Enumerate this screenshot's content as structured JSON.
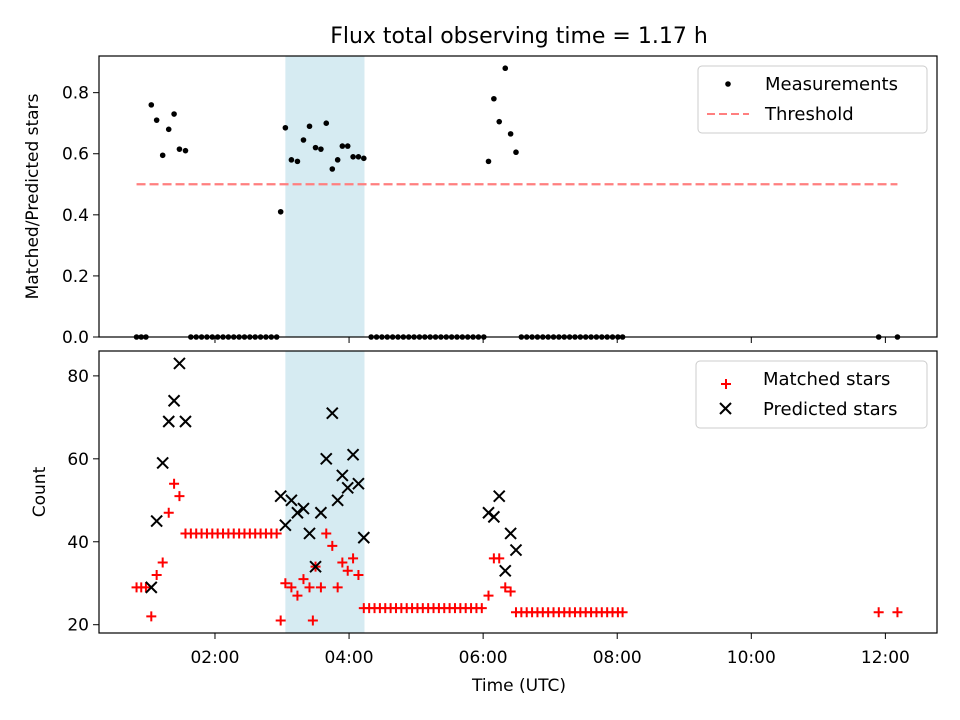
{
  "title": "Flux total observing time = 1.17 h",
  "chart_data": [
    {
      "type": "scatter",
      "ylabel": "Matched/Predicted stars",
      "xlim": [
        0.27,
        12.77
      ],
      "ylim": [
        0,
        0.92
      ],
      "yticks": [
        0.0,
        0.2,
        0.4,
        0.6,
        0.8
      ],
      "ytick_labels": [
        "0.0",
        "0.2",
        "0.4",
        "0.6",
        "0.8"
      ],
      "shaded_span": {
        "x0": 3.05,
        "x1": 4.23,
        "color": "#add8e6"
      },
      "legend": {
        "position": "upper right",
        "measurements_label": "Measurements",
        "threshold_label": "Threshold"
      },
      "series": [
        {
          "name": "Measurements",
          "color": "#000000",
          "marker": "dot",
          "points": [
            [
              0.83,
              0
            ],
            [
              0.9,
              0
            ],
            [
              0.97,
              0
            ],
            [
              1.05,
              0.76
            ],
            [
              1.13,
              0.71
            ],
            [
              1.22,
              0.595
            ],
            [
              1.31,
              0.68
            ],
            [
              1.39,
              0.73
            ],
            [
              1.47,
              0.615
            ],
            [
              1.56,
              0.61
            ],
            [
              1.64,
              0
            ],
            [
              1.72,
              0
            ],
            [
              1.8,
              0
            ],
            [
              1.88,
              0
            ],
            [
              1.96,
              0
            ],
            [
              2.04,
              0
            ],
            [
              2.12,
              0
            ],
            [
              2.2,
              0
            ],
            [
              2.28,
              0
            ],
            [
              2.36,
              0
            ],
            [
              2.44,
              0
            ],
            [
              2.52,
              0
            ],
            [
              2.6,
              0
            ],
            [
              2.68,
              0
            ],
            [
              2.76,
              0
            ],
            [
              2.84,
              0
            ],
            [
              2.92,
              0
            ],
            [
              2.98,
              0.41
            ],
            [
              3.05,
              0.685
            ],
            [
              3.14,
              0.58
            ],
            [
              3.23,
              0.575
            ],
            [
              3.32,
              0.645
            ],
            [
              3.41,
              0.69
            ],
            [
              3.5,
              0.62
            ],
            [
              3.58,
              0.615
            ],
            [
              3.66,
              0.7
            ],
            [
              3.75,
              0.55
            ],
            [
              3.83,
              0.58
            ],
            [
              3.9,
              0.625
            ],
            [
              3.98,
              0.625
            ],
            [
              4.06,
              0.59
            ],
            [
              4.14,
              0.59
            ],
            [
              4.22,
              0.585
            ],
            [
              4.33,
              0
            ],
            [
              4.41,
              0
            ],
            [
              4.49,
              0
            ],
            [
              4.57,
              0
            ],
            [
              4.65,
              0
            ],
            [
              4.73,
              0
            ],
            [
              4.81,
              0
            ],
            [
              4.89,
              0
            ],
            [
              4.97,
              0
            ],
            [
              5.05,
              0
            ],
            [
              5.13,
              0
            ],
            [
              5.21,
              0
            ],
            [
              5.29,
              0
            ],
            [
              5.37,
              0
            ],
            [
              5.45,
              0
            ],
            [
              5.53,
              0
            ],
            [
              5.61,
              0
            ],
            [
              5.69,
              0
            ],
            [
              5.77,
              0
            ],
            [
              5.85,
              0
            ],
            [
              5.93,
              0
            ],
            [
              6.01,
              0
            ],
            [
              6.08,
              0.575
            ],
            [
              6.16,
              0.78
            ],
            [
              6.24,
              0.705
            ],
            [
              6.33,
              0.88
            ],
            [
              6.41,
              0.665
            ],
            [
              6.49,
              0.605
            ],
            [
              6.57,
              0
            ],
            [
              6.65,
              0
            ],
            [
              6.73,
              0
            ],
            [
              6.81,
              0
            ],
            [
              6.89,
              0
            ],
            [
              6.97,
              0
            ],
            [
              7.05,
              0
            ],
            [
              7.13,
              0
            ],
            [
              7.21,
              0
            ],
            [
              7.29,
              0
            ],
            [
              7.37,
              0
            ],
            [
              7.45,
              0
            ],
            [
              7.53,
              0
            ],
            [
              7.61,
              0
            ],
            [
              7.69,
              0
            ],
            [
              7.77,
              0
            ],
            [
              7.85,
              0
            ],
            [
              7.93,
              0
            ],
            [
              8.01,
              0
            ],
            [
              8.08,
              0
            ],
            [
              11.9,
              0
            ],
            [
              12.18,
              0
            ]
          ]
        },
        {
          "name": "Threshold",
          "color": "#ff7f7f",
          "style": "dashed",
          "x": [
            0.83,
            12.18
          ],
          "y": [
            0.5,
            0.5
          ]
        }
      ]
    },
    {
      "type": "scatter",
      "xlabel": "Time (UTC)",
      "ylabel": "Count",
      "xlim": [
        0.27,
        12.77
      ],
      "ylim": [
        18,
        86
      ],
      "yticks": [
        20,
        40,
        60,
        80
      ],
      "ytick_labels": [
        "20",
        "40",
        "60",
        "80"
      ],
      "xticks": [
        2,
        4,
        6,
        8,
        10,
        12
      ],
      "xtick_labels": [
        "02:00",
        "04:00",
        "06:00",
        "08:00",
        "10:00",
        "12:00"
      ],
      "shaded_span": {
        "x0": 3.05,
        "x1": 4.23,
        "color": "#add8e6"
      },
      "legend": {
        "position": "upper right",
        "matched_label": "Matched stars",
        "predicted_label": "Predicted stars"
      },
      "series": [
        {
          "name": "Matched stars",
          "color": "#ff0000",
          "marker": "plus",
          "points": [
            [
              0.83,
              29
            ],
            [
              0.9,
              29
            ],
            [
              0.97,
              29
            ],
            [
              1.05,
              22
            ],
            [
              1.13,
              32
            ],
            [
              1.22,
              35
            ],
            [
              1.31,
              47
            ],
            [
              1.39,
              54
            ],
            [
              1.47,
              51
            ],
            [
              1.56,
              42
            ],
            [
              1.64,
              42
            ],
            [
              1.72,
              42
            ],
            [
              1.8,
              42
            ],
            [
              1.88,
              42
            ],
            [
              1.96,
              42
            ],
            [
              2.04,
              42
            ],
            [
              2.12,
              42
            ],
            [
              2.2,
              42
            ],
            [
              2.28,
              42
            ],
            [
              2.36,
              42
            ],
            [
              2.44,
              42
            ],
            [
              2.52,
              42
            ],
            [
              2.6,
              42
            ],
            [
              2.68,
              42
            ],
            [
              2.76,
              42
            ],
            [
              2.84,
              42
            ],
            [
              2.92,
              42
            ],
            [
              2.98,
              21
            ],
            [
              3.05,
              30
            ],
            [
              3.14,
              29
            ],
            [
              3.23,
              27
            ],
            [
              3.32,
              31
            ],
            [
              3.41,
              29
            ],
            [
              3.46,
              21
            ],
            [
              3.5,
              34
            ],
            [
              3.58,
              29
            ],
            [
              3.66,
              42
            ],
            [
              3.75,
              39
            ],
            [
              3.83,
              29
            ],
            [
              3.9,
              35
            ],
            [
              3.98,
              33
            ],
            [
              4.06,
              36
            ],
            [
              4.14,
              32
            ],
            [
              4.22,
              24
            ],
            [
              4.3,
              24
            ],
            [
              4.38,
              24
            ],
            [
              4.46,
              24
            ],
            [
              4.54,
              24
            ],
            [
              4.62,
              24
            ],
            [
              4.7,
              24
            ],
            [
              4.78,
              24
            ],
            [
              4.86,
              24
            ],
            [
              4.94,
              24
            ],
            [
              5.02,
              24
            ],
            [
              5.1,
              24
            ],
            [
              5.18,
              24
            ],
            [
              5.26,
              24
            ],
            [
              5.34,
              24
            ],
            [
              5.42,
              24
            ],
            [
              5.5,
              24
            ],
            [
              5.58,
              24
            ],
            [
              5.66,
              24
            ],
            [
              5.74,
              24
            ],
            [
              5.82,
              24
            ],
            [
              5.9,
              24
            ],
            [
              5.98,
              24
            ],
            [
              6.08,
              27
            ],
            [
              6.16,
              36
            ],
            [
              6.24,
              36
            ],
            [
              6.33,
              29
            ],
            [
              6.41,
              28
            ],
            [
              6.49,
              23
            ],
            [
              6.57,
              23
            ],
            [
              6.65,
              23
            ],
            [
              6.73,
              23
            ],
            [
              6.81,
              23
            ],
            [
              6.89,
              23
            ],
            [
              6.97,
              23
            ],
            [
              7.05,
              23
            ],
            [
              7.13,
              23
            ],
            [
              7.21,
              23
            ],
            [
              7.29,
              23
            ],
            [
              7.37,
              23
            ],
            [
              7.45,
              23
            ],
            [
              7.53,
              23
            ],
            [
              7.61,
              23
            ],
            [
              7.69,
              23
            ],
            [
              7.77,
              23
            ],
            [
              7.85,
              23
            ],
            [
              7.93,
              23
            ],
            [
              8.01,
              23
            ],
            [
              8.08,
              23
            ],
            [
              11.9,
              23
            ],
            [
              12.18,
              23
            ]
          ]
        },
        {
          "name": "Predicted stars",
          "color": "#000000",
          "marker": "x",
          "points": [
            [
              1.05,
              29
            ],
            [
              1.13,
              45
            ],
            [
              1.22,
              59
            ],
            [
              1.31,
              69
            ],
            [
              1.39,
              74
            ],
            [
              1.47,
              83
            ],
            [
              1.56,
              69
            ],
            [
              2.98,
              51
            ],
            [
              3.05,
              44
            ],
            [
              3.14,
              50
            ],
            [
              3.23,
              47
            ],
            [
              3.32,
              48
            ],
            [
              3.41,
              42
            ],
            [
              3.5,
              34
            ],
            [
              3.58,
              47
            ],
            [
              3.66,
              60
            ],
            [
              3.75,
              71
            ],
            [
              3.83,
              50
            ],
            [
              3.9,
              56
            ],
            [
              3.98,
              53
            ],
            [
              4.06,
              61
            ],
            [
              4.14,
              54
            ],
            [
              4.22,
              41
            ],
            [
              6.08,
              47
            ],
            [
              6.16,
              46
            ],
            [
              6.24,
              51
            ],
            [
              6.33,
              33
            ],
            [
              6.41,
              42
            ],
            [
              6.49,
              38
            ]
          ]
        }
      ]
    }
  ]
}
